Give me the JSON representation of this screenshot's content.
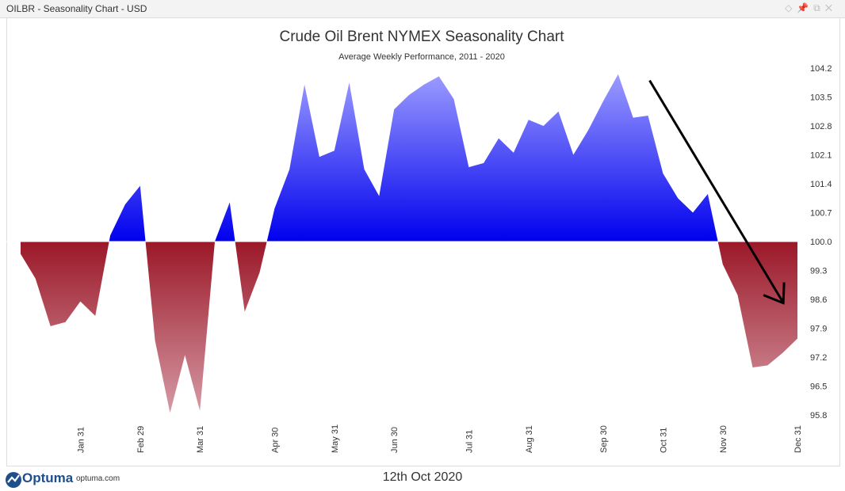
{
  "window": {
    "title": "OILBR - Seasonality Chart - USD",
    "controls": [
      {
        "name": "diamond-icon",
        "glyph": "◇"
      },
      {
        "name": "pin-icon",
        "glyph": "📌"
      },
      {
        "name": "restore-icon",
        "glyph": "⧉"
      },
      {
        "name": "close-icon",
        "glyph": "✕"
      }
    ]
  },
  "chart_data": {
    "type": "area",
    "title": "Crude Oil Brent NYMEX Seasonality Chart",
    "subtitle": "Average Weekly Performance, 2011 - 2020",
    "baseline": 100.0,
    "ylim": [
      95.6,
      104.4
    ],
    "yticks": [
      "104.2",
      "103.5",
      "102.8",
      "102.1",
      "101.4",
      "100.7",
      "100.0",
      "99.3",
      "98.6",
      "97.9",
      "97.2",
      "96.5",
      "95.8"
    ],
    "month_labels": [
      {
        "label": "Jan 31",
        "week": 4
      },
      {
        "label": "Feb 29",
        "week": 8
      },
      {
        "label": "Mar 31",
        "week": 12
      },
      {
        "label": "Apr 30",
        "week": 17
      },
      {
        "label": "May 31",
        "week": 21
      },
      {
        "label": "Jun 30",
        "week": 25
      },
      {
        "label": "Jul 31",
        "week": 30
      },
      {
        "label": "Aug 31",
        "week": 34
      },
      {
        "label": "Sep 30",
        "week": 39
      },
      {
        "label": "Oct 31",
        "week": 43
      },
      {
        "label": "Nov 30",
        "week": 47
      },
      {
        "label": "Dec 31",
        "week": 52
      }
    ],
    "x": [
      0,
      1,
      2,
      3,
      4,
      5,
      6,
      7,
      8,
      9,
      10,
      11,
      12,
      13,
      14,
      15,
      16,
      17,
      18,
      19,
      20,
      21,
      22,
      23,
      24,
      25,
      26,
      27,
      28,
      29,
      30,
      31,
      32,
      33,
      34,
      35,
      36,
      37,
      38,
      39,
      40,
      41,
      42,
      43,
      44,
      45,
      46,
      47,
      48,
      49,
      50,
      51,
      52
    ],
    "values": [
      99.7,
      99.1,
      97.95,
      98.05,
      98.55,
      98.2,
      100.15,
      100.9,
      101.35,
      97.6,
      95.85,
      97.25,
      95.9,
      100.0,
      100.95,
      98.3,
      99.25,
      100.8,
      101.75,
      103.8,
      102.05,
      102.2,
      103.85,
      101.75,
      101.1,
      103.2,
      103.55,
      103.8,
      104.0,
      103.45,
      101.8,
      101.9,
      102.5,
      102.15,
      102.95,
      102.8,
      103.15,
      102.1,
      102.7,
      103.4,
      104.05,
      103.0,
      103.05,
      101.65,
      101.05,
      100.7,
      101.15,
      99.45,
      98.7,
      96.95,
      97.0,
      97.3,
      97.65
    ],
    "series_colors": {
      "positive": "#0000ee",
      "positive_top": "#9a9aff",
      "negative": "#9b1828",
      "negative_bottom": "#d69aa5"
    },
    "annotation": {
      "type": "arrow",
      "from_week": 42,
      "from_value": 103.9,
      "to_week": 51,
      "to_value": 98.55,
      "color": "#000000"
    }
  },
  "footer": {
    "date": "12th Oct 2020",
    "brand": "Optuma",
    "url": "optuma.com"
  }
}
